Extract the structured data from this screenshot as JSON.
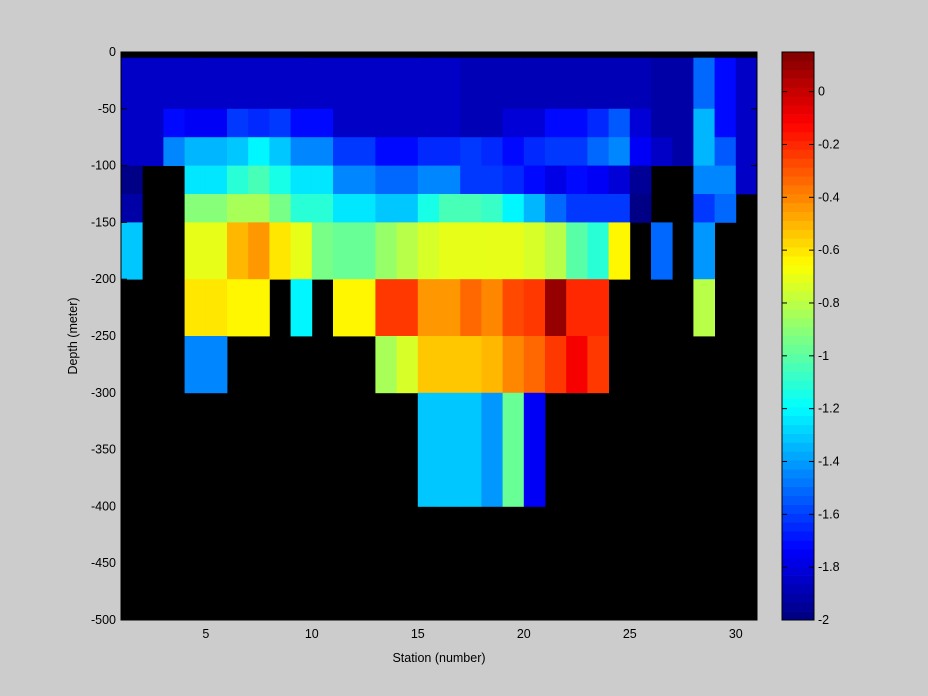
{
  "chart_data": {
    "type": "heatmap",
    "xlabel": "Station (number)",
    "ylabel": "Depth (meter)",
    "xlim": [
      1,
      31
    ],
    "ylim": [
      -500,
      0
    ],
    "xticks": [
      5,
      10,
      15,
      20,
      25,
      30
    ],
    "yticks": [
      0,
      -50,
      -100,
      -150,
      -200,
      -250,
      -300,
      -350,
      -400,
      -450,
      -500
    ],
    "colorbar": {
      "clim": [
        -2,
        0.15
      ],
      "ticks": [
        0,
        -0.2,
        -0.4,
        -0.6,
        -0.8,
        -1,
        -1.2,
        -1.4,
        -1.6,
        -1.8,
        -2
      ],
      "colormap": "jet",
      "levels": 64
    },
    "missing_color": "#000000",
    "background_color": "#cccccc",
    "depth_bins": [
      {
        "top": 0,
        "bottom": -5
      },
      {
        "top": -5,
        "bottom": -50
      },
      {
        "top": -50,
        "bottom": -75
      },
      {
        "top": -75,
        "bottom": -100
      },
      {
        "top": -100,
        "bottom": -125
      },
      {
        "top": -125,
        "bottom": -150
      },
      {
        "top": -150,
        "bottom": -200
      },
      {
        "top": -200,
        "bottom": -250
      },
      {
        "top": -250,
        "bottom": -300
      },
      {
        "top": -300,
        "bottom": -400
      }
    ],
    "stations": [
      1,
      2,
      3,
      4,
      5,
      6,
      7,
      8,
      9,
      10,
      11,
      12,
      13,
      14,
      15,
      16,
      17,
      18,
      19,
      20,
      21,
      22,
      23,
      24,
      25,
      26,
      27,
      28,
      29,
      30
    ],
    "values": [
      [
        null,
        null,
        null,
        null,
        null,
        null,
        null,
        null,
        null,
        null,
        null,
        null,
        null,
        null,
        null,
        null,
        null,
        null,
        null,
        null,
        null,
        null,
        null,
        null,
        null,
        null,
        null,
        null,
        null,
        null
      ],
      [
        -1.85,
        -1.85,
        -1.85,
        -1.85,
        -1.85,
        -1.85,
        -1.85,
        -1.85,
        -1.85,
        -1.85,
        -1.85,
        -1.85,
        -1.85,
        -1.85,
        -1.85,
        -1.85,
        -1.87,
        -1.87,
        -1.87,
        -1.87,
        -1.87,
        -1.87,
        -1.87,
        -1.87,
        -1.87,
        -1.9,
        -1.9,
        -1.52,
        -1.72,
        -1.85
      ],
      [
        -1.85,
        -1.85,
        -1.72,
        -1.75,
        -1.75,
        -1.63,
        -1.66,
        -1.63,
        -1.72,
        -1.72,
        -1.85,
        -1.85,
        -1.85,
        -1.85,
        -1.85,
        -1.85,
        -1.87,
        -1.87,
        -1.82,
        -1.8,
        -1.72,
        -1.72,
        -1.66,
        -1.55,
        -1.8,
        -1.9,
        -1.9,
        -1.35,
        -1.72,
        -1.85
      ],
      [
        -1.85,
        -1.85,
        -1.45,
        -1.35,
        -1.35,
        -1.3,
        -1.2,
        -1.3,
        -1.45,
        -1.45,
        -1.63,
        -1.63,
        -1.7,
        -1.72,
        -1.66,
        -1.66,
        -1.63,
        -1.66,
        -1.7,
        -1.66,
        -1.63,
        -1.6,
        -1.52,
        -1.45,
        -1.75,
        -1.85,
        -1.9,
        -1.35,
        -1.55,
        -1.85
      ],
      [
        -1.98,
        null,
        null,
        -1.25,
        -1.25,
        -1.1,
        -1.05,
        -1.15,
        -1.25,
        -1.25,
        -1.45,
        -1.45,
        -1.52,
        -1.52,
        -1.45,
        -1.45,
        -1.63,
        -1.63,
        -1.66,
        -1.72,
        -1.78,
        -1.7,
        -1.75,
        -1.8,
        -1.95,
        null,
        null,
        -1.45,
        -1.45,
        -1.85
      ],
      [
        -1.9,
        null,
        null,
        -0.92,
        -0.92,
        -0.85,
        -0.85,
        -0.93,
        -1.1,
        -1.1,
        -1.25,
        -1.25,
        -1.3,
        -1.3,
        -1.15,
        -1.05,
        -1.05,
        -1.08,
        -1.2,
        -1.35,
        -1.5,
        -1.6,
        -1.6,
        -1.6,
        -1.98,
        null,
        null,
        -1.6,
        -1.52,
        null
      ],
      [
        -1.3,
        null,
        null,
        -0.7,
        -0.7,
        -0.5,
        -0.45,
        -0.6,
        -0.72,
        -0.93,
        -0.98,
        -0.98,
        -0.88,
        -0.8,
        -0.75,
        -0.72,
        -0.72,
        -0.72,
        -0.7,
        -0.75,
        -0.8,
        -1.0,
        -1.1,
        -0.65,
        null,
        -1.52,
        null,
        -1.4,
        null,
        null
      ],
      [
        null,
        null,
        null,
        -0.6,
        -0.6,
        -0.65,
        -0.65,
        null,
        -1.2,
        null,
        -0.65,
        -0.65,
        -0.22,
        -0.22,
        -0.45,
        -0.45,
        -0.35,
        -0.4,
        -0.28,
        -0.25,
        0.1,
        -0.2,
        -0.2,
        null,
        null,
        null,
        null,
        -0.82,
        null,
        null
      ],
      [
        null,
        null,
        null,
        -1.45,
        -1.45,
        null,
        null,
        null,
        null,
        null,
        null,
        null,
        -0.85,
        -0.75,
        -0.55,
        -0.55,
        -0.55,
        -0.5,
        -0.4,
        -0.35,
        -0.25,
        -0.1,
        -0.25,
        null,
        null,
        null,
        null,
        null,
        null,
        null
      ],
      [
        null,
        null,
        null,
        null,
        null,
        null,
        null,
        null,
        null,
        null,
        null,
        null,
        null,
        null,
        -1.3,
        -1.3,
        -1.3,
        -1.4,
        -0.97,
        -1.75,
        null,
        null,
        null,
        null,
        null,
        null,
        null,
        null,
        null,
        null
      ]
    ]
  }
}
